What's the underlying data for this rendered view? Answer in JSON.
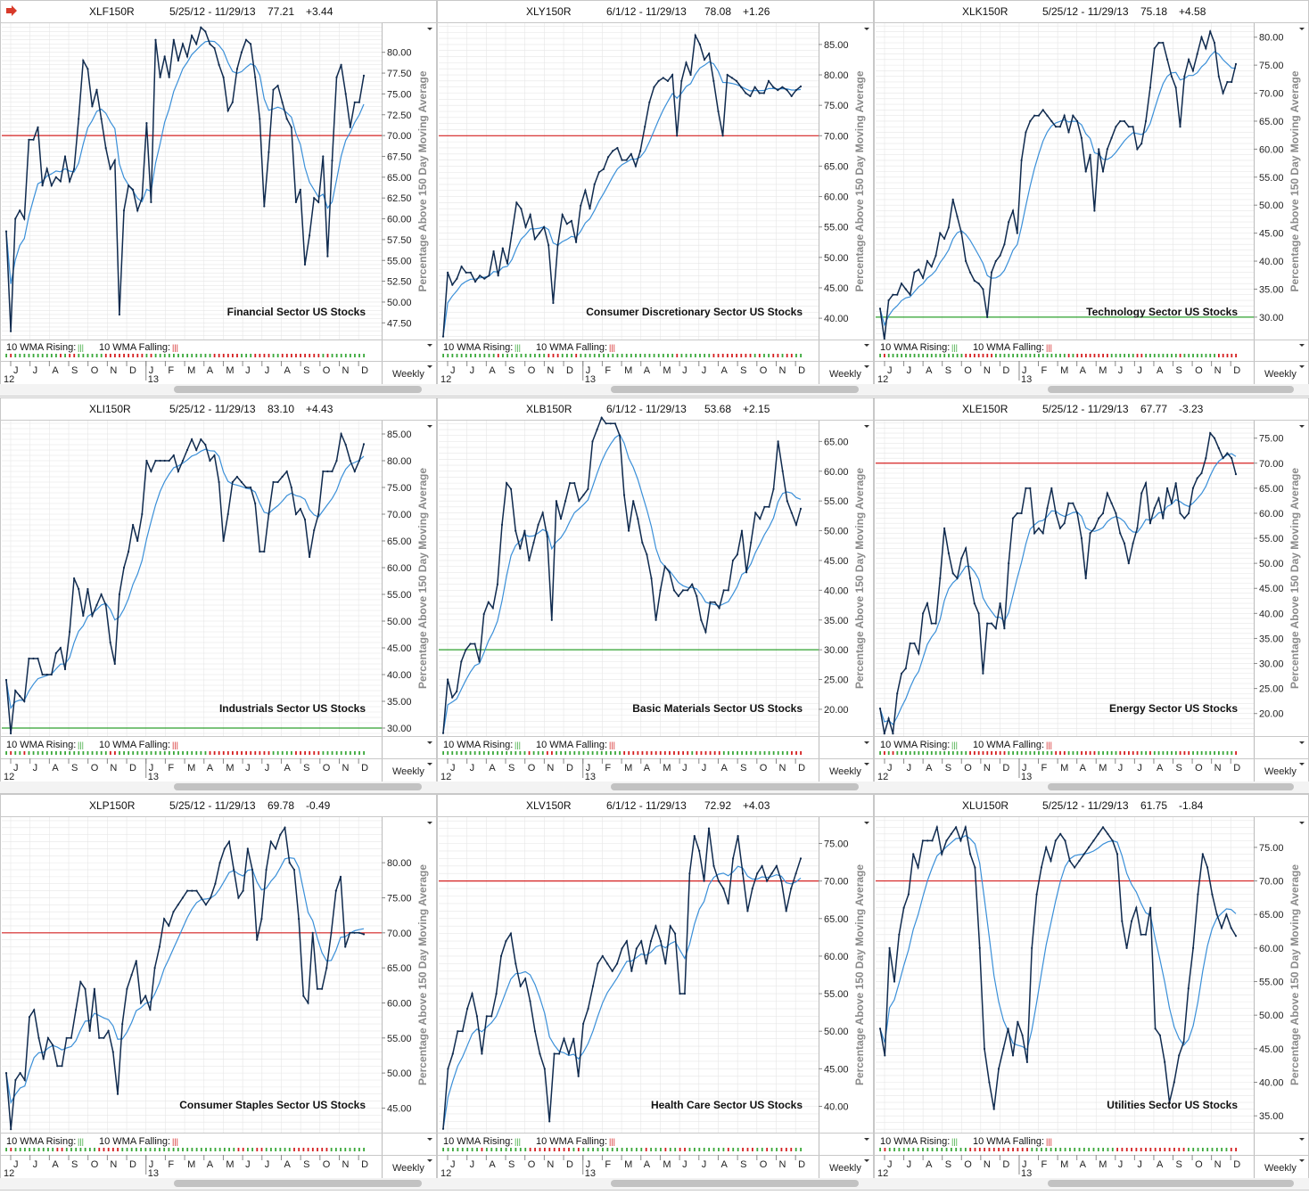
{
  "ylabel": "Percentage Above 150 Day Moving Average",
  "legend": {
    "rising_label": "10 WMA Rising:",
    "rising_marker": "|||",
    "falling_label": "10 WMA Falling:",
    "falling_marker": "|||"
  },
  "period": "Weekly",
  "months": [
    "J",
    "J",
    "A",
    "S",
    "O",
    "N",
    "D",
    "J",
    "F",
    "M",
    "A",
    "M",
    "J",
    "J",
    "A",
    "S",
    "O",
    "N",
    "D"
  ],
  "years": [
    "12",
    "13"
  ],
  "colors": {
    "price": "#0f2a4e",
    "wma": "#3a8fd8",
    "ref_red": "#d42020",
    "ref_green": "#2ea02e",
    "rising": "#3aa83a",
    "falling": "#d42020",
    "grid": "#e6e6e6"
  },
  "chart_data": [
    {
      "type": "line",
      "symbol": "XLF150R",
      "dates": "5/25/12 - 11/29/13",
      "last": "77.21",
      "change": "+3.44",
      "subtitle": "Financial Sector US Stocks",
      "ylim": [
        45.5,
        83.5
      ],
      "yticks": [
        47.5,
        50,
        52.5,
        55,
        57.5,
        60,
        62.5,
        65,
        67.5,
        70,
        72.5,
        75,
        77.5,
        80
      ],
      "ref": {
        "value": 70,
        "color": "red"
      },
      "values": [
        58.5,
        46.5,
        60,
        61,
        60,
        69.5,
        69.5,
        71,
        64,
        66,
        64,
        65,
        64.5,
        67.5,
        64.5,
        66,
        72,
        79,
        78,
        73.5,
        75.5,
        72,
        68.5,
        66,
        67,
        48.5,
        61,
        64,
        63.5,
        61,
        62.5,
        71.5,
        62,
        81.5,
        77,
        79.5,
        77,
        81.5,
        79,
        81,
        79.5,
        82,
        81,
        83,
        82.5,
        81,
        80.5,
        78.5,
        77,
        73,
        74,
        78,
        80,
        81.5,
        81,
        77,
        72,
        61.5,
        68,
        75.5,
        76,
        74,
        72,
        71,
        62,
        63.5,
        54.5,
        58,
        62.5,
        62,
        67.5,
        55.5,
        67,
        77,
        78.5,
        75,
        71,
        74,
        74,
        77.2
      ]
    },
    {
      "type": "line",
      "symbol": "XLY150R",
      "dates": "6/1/12 - 11/29/13",
      "last": "78.08",
      "change": "+1.26",
      "subtitle": "Consumer Discretionary Sector US Stocks",
      "ylim": [
        36.5,
        88.5
      ],
      "yticks": [
        40,
        45,
        50,
        55,
        60,
        65,
        70,
        75,
        80,
        85
      ],
      "ref": {
        "value": 70,
        "color": "red"
      },
      "values": [
        37,
        47.5,
        45.5,
        46.5,
        48.5,
        47.5,
        47.5,
        46,
        47,
        46.5,
        47,
        51,
        47,
        51.5,
        49,
        54,
        59,
        58,
        55,
        57,
        53,
        54,
        55,
        52,
        42.5,
        52,
        57,
        55.5,
        56,
        52.5,
        58.5,
        61,
        58,
        62,
        64,
        64.5,
        66.5,
        67.5,
        68,
        66,
        66,
        67,
        65,
        67.5,
        71.5,
        75.5,
        78,
        79,
        79.5,
        79,
        80,
        70,
        79,
        82,
        80,
        86.5,
        85,
        82.5,
        83.5,
        79,
        74,
        70,
        80,
        79.5,
        79,
        78,
        77,
        76.5,
        78,
        77,
        77,
        79,
        78,
        77.5,
        78,
        77.5,
        76.5,
        77.5,
        78.1
      ]
    },
    {
      "type": "line",
      "symbol": "XLK150R",
      "dates": "5/25/12 - 11/29/13",
      "last": "75.18",
      "change": "+4.58",
      "subtitle": "Technology Sector US Stocks",
      "ylim": [
        26,
        82.5
      ],
      "yticks": [
        30,
        35,
        40,
        45,
        50,
        55,
        60,
        65,
        70,
        75,
        80
      ],
      "ref": {
        "value": 30,
        "color": "green"
      },
      "values": [
        31.5,
        26,
        33,
        34,
        34,
        36,
        35,
        34,
        38,
        38.5,
        37,
        40,
        39,
        41,
        45,
        44,
        46,
        51,
        48,
        45,
        40,
        38,
        36.5,
        36,
        35,
        30,
        38,
        40,
        41,
        43,
        47,
        49,
        45,
        58,
        63,
        65,
        66,
        66,
        67,
        66,
        65,
        64,
        64,
        66,
        63,
        66,
        65,
        62,
        56,
        59,
        49,
        60,
        56,
        60,
        62,
        64,
        65,
        65,
        64,
        64,
        60,
        61,
        65,
        71,
        78,
        79,
        79,
        76,
        73,
        71,
        64,
        73,
        76,
        74,
        77,
        80,
        78,
        81,
        79,
        73,
        70,
        72,
        72,
        75.2
      ]
    },
    {
      "type": "line",
      "symbol": "XLI150R",
      "dates": "5/25/12 - 11/29/13",
      "last": "83.10",
      "change": "+4.43",
      "subtitle": "Industrials Sector US Stocks",
      "ylim": [
        28.5,
        87.5
      ],
      "yticks": [
        30,
        35,
        40,
        45,
        50,
        55,
        60,
        65,
        70,
        75,
        80,
        85
      ],
      "ref": {
        "value": 30,
        "color": "green"
      },
      "values": [
        39,
        29,
        37,
        36,
        35,
        43,
        43,
        43,
        40,
        40,
        40,
        44,
        45,
        41,
        48,
        58,
        56,
        51,
        56,
        51,
        53,
        55,
        53,
        46,
        42,
        55,
        60,
        63,
        68,
        65,
        70,
        80,
        78,
        80,
        80,
        80,
        80,
        81,
        78,
        80,
        82,
        84,
        82,
        84,
        83,
        80,
        81,
        76,
        65,
        70,
        76,
        77,
        76,
        75,
        75,
        72,
        63,
        63,
        70,
        76,
        76,
        77,
        78,
        75,
        70,
        71,
        69,
        62,
        67,
        70,
        78,
        78,
        78,
        80,
        85,
        83,
        80,
        78,
        80,
        83.1
      ]
    },
    {
      "type": "line",
      "symbol": "XLB150R",
      "dates": "6/1/12 - 11/29/13",
      "last": "53.68",
      "change": "+2.15",
      "subtitle": "Basic Materials Sector US Stocks",
      "ylim": [
        15.5,
        68.5
      ],
      "yticks": [
        20,
        25,
        30,
        35,
        40,
        45,
        50,
        55,
        60,
        65
      ],
      "ref": {
        "value": 30,
        "color": "green"
      },
      "values": [
        16,
        25,
        22,
        23,
        28,
        30,
        31,
        31,
        28,
        36,
        38,
        37,
        41,
        51,
        58,
        57,
        50,
        47,
        50,
        45,
        48,
        51,
        53,
        49,
        35,
        55,
        52,
        55,
        58,
        58,
        55,
        56,
        57,
        65,
        67,
        69,
        68,
        68,
        68,
        66,
        56,
        50,
        55,
        52,
        48,
        46,
        42,
        35,
        40,
        44,
        43,
        40,
        39,
        40,
        40,
        41,
        39,
        35,
        33,
        38,
        38,
        37,
        40,
        40,
        45,
        46,
        50,
        43,
        48,
        53,
        52,
        54,
        54,
        57,
        65,
        60,
        55,
        53,
        51,
        53.7
      ]
    },
    {
      "type": "line",
      "symbol": "XLE150R",
      "dates": "5/25/12 - 11/29/13",
      "last": "67.77",
      "change": "-3.23",
      "subtitle": "Energy Sector US Stocks",
      "ylim": [
        15.5,
        78.5
      ],
      "yticks": [
        20,
        25,
        30,
        35,
        40,
        45,
        50,
        55,
        60,
        65,
        70,
        75
      ],
      "ref": {
        "value": 70,
        "color": "red"
      },
      "values": [
        21,
        16,
        19,
        16,
        24,
        28,
        29,
        34,
        34,
        32,
        40,
        42,
        38,
        38,
        47,
        57,
        52,
        48,
        47,
        51,
        53,
        47,
        42,
        40,
        28,
        38,
        38,
        37,
        42,
        37,
        50,
        59,
        60,
        60,
        65,
        65,
        56,
        57,
        56,
        61,
        65,
        60,
        57,
        58,
        62,
        62,
        60,
        55,
        47,
        56,
        57,
        59,
        60,
        64,
        62,
        60,
        56,
        54,
        50,
        54,
        57,
        64,
        66,
        58,
        61,
        63,
        59,
        65,
        62,
        66,
        60,
        59,
        60,
        65,
        67,
        68,
        71,
        76,
        75,
        73,
        71,
        72,
        71,
        67.8
      ]
    },
    {
      "type": "line",
      "symbol": "XLP150R",
      "dates": "5/25/12 - 11/29/13",
      "last": "69.78",
      "change": "-0.49",
      "subtitle": "Consumer Staples Sector US Stocks",
      "ylim": [
        41.5,
        86.5
      ],
      "yticks": [
        45,
        50,
        55,
        60,
        65,
        70,
        75,
        80
      ],
      "ref": {
        "value": 70,
        "color": "red"
      },
      "values": [
        50,
        42,
        49,
        50,
        49,
        58,
        59,
        55,
        52,
        55,
        54,
        51,
        51,
        55,
        55,
        59,
        63,
        62,
        56,
        62,
        55,
        55,
        56,
        53,
        47,
        57,
        62,
        64,
        66,
        60,
        61,
        59,
        65,
        68,
        72,
        71,
        73,
        74,
        75,
        76,
        76,
        76,
        75,
        74,
        75,
        77,
        80,
        82,
        83,
        79,
        75,
        76,
        82,
        79,
        69,
        72,
        79,
        83,
        82,
        84,
        85,
        80,
        79,
        72,
        61,
        60,
        70,
        62,
        62,
        65,
        70,
        76,
        78,
        68,
        70,
        70,
        70,
        69.8
      ]
    },
    {
      "type": "line",
      "symbol": "XLV150R",
      "dates": "6/1/12 - 11/29/13",
      "last": "72.92",
      "change": "+4.03",
      "subtitle": "Health Care Sector US Stocks",
      "ylim": [
        36.5,
        78.5
      ],
      "yticks": [
        40,
        45,
        50,
        55,
        60,
        65,
        70,
        75
      ],
      "ref": {
        "value": 70,
        "color": "red"
      },
      "values": [
        37,
        45,
        47,
        50,
        50,
        53,
        55,
        52,
        47,
        52,
        52,
        55,
        60,
        62,
        63,
        59,
        56,
        57,
        54,
        50,
        47,
        45,
        38,
        47,
        47,
        49,
        47,
        49,
        44,
        51,
        53,
        56,
        59,
        60,
        59,
        58,
        59,
        61,
        62,
        58,
        61,
        62,
        59,
        62,
        64,
        62,
        59,
        64,
        63,
        55,
        55,
        71,
        76,
        74,
        70,
        77,
        72,
        70,
        69,
        67,
        73,
        76,
        71,
        66,
        69,
        71,
        72,
        70,
        71,
        72,
        70,
        66,
        69,
        71,
        73
      ]
    },
    {
      "type": "line",
      "symbol": "XLU150R",
      "dates": "5/25/12 - 11/29/13",
      "last": "61.75",
      "change": "-1.84",
      "subtitle": "Utilities Sector US Stocks",
      "ylim": [
        32.5,
        79.5
      ],
      "yticks": [
        35,
        40,
        45,
        50,
        55,
        60,
        65,
        70,
        75
      ],
      "ref": {
        "value": 70,
        "color": "red"
      },
      "values": [
        48,
        44,
        60,
        55,
        62,
        66,
        68,
        74,
        72,
        76,
        76,
        76,
        78,
        74,
        76,
        77,
        78,
        76,
        78,
        74,
        72,
        60,
        45,
        40,
        36,
        42,
        45,
        48,
        44,
        49,
        47,
        43,
        60,
        68,
        72,
        75,
        73,
        76,
        77,
        76,
        73,
        72,
        73,
        74,
        75,
        76,
        77,
        78,
        77,
        76,
        74,
        64,
        60,
        64,
        66,
        62,
        62,
        66,
        48,
        47,
        43,
        37,
        40,
        44,
        46,
        54,
        60,
        68,
        74,
        72,
        68,
        65,
        63,
        65,
        63,
        61.8
      ]
    }
  ]
}
